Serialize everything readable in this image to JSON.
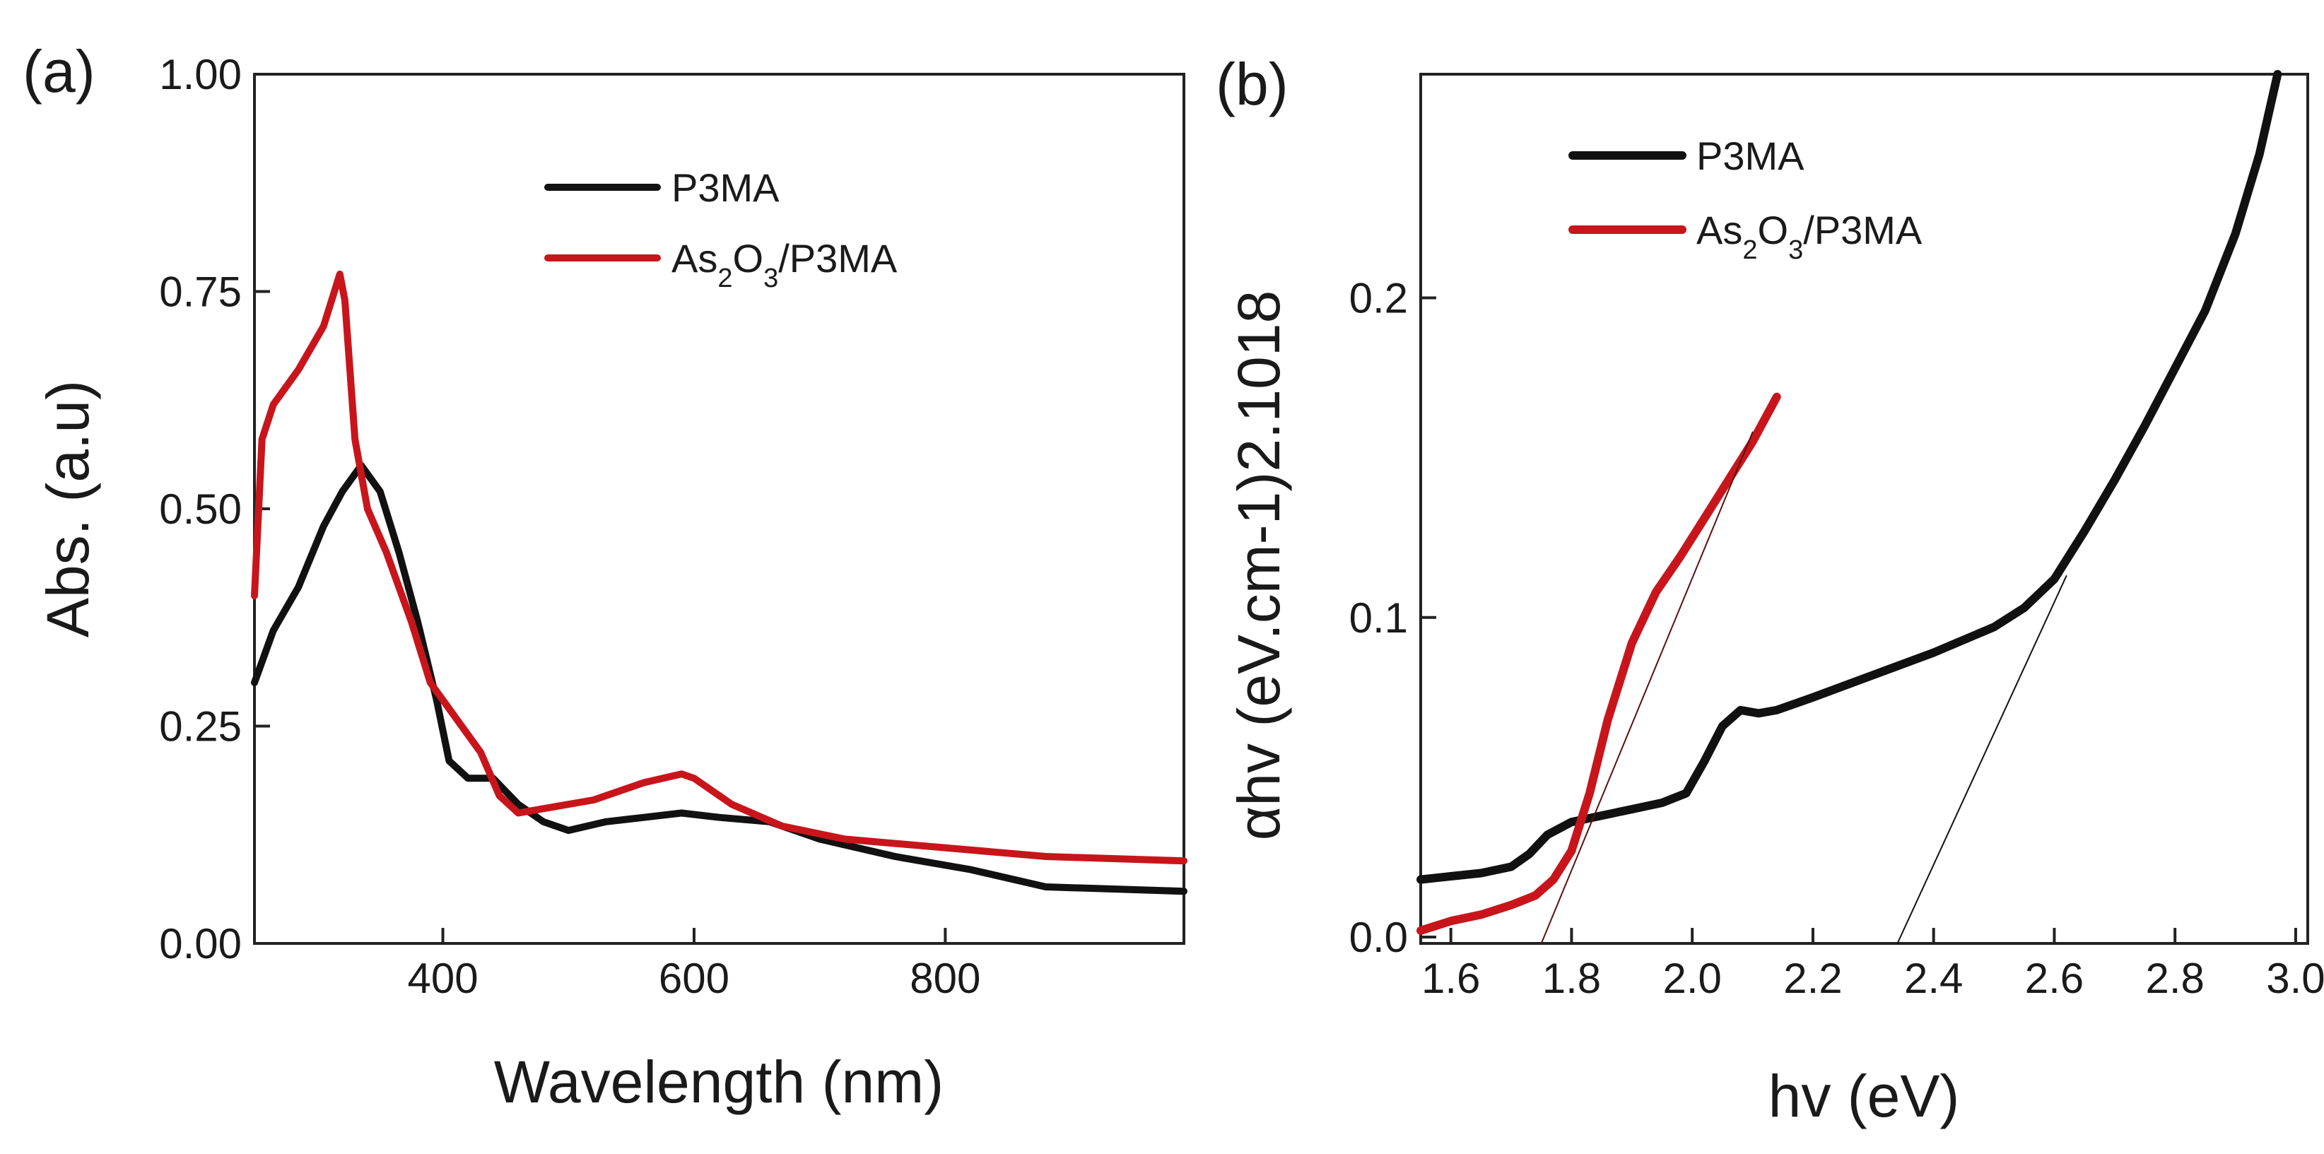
{
  "chart_data": [
    {
      "type": "line",
      "panel_label": "(a)",
      "xlabel": "Wavelength (nm)",
      "ylabel": "Abs. (a.u)",
      "xlim": [
        250,
        990
      ],
      "ylim": [
        0,
        1.0
      ],
      "xticks": [
        400,
        600,
        800
      ],
      "xtick_labels": [
        "400",
        "600",
        "800"
      ],
      "yticks": [
        0,
        0.25,
        0.5,
        0.75,
        1.0
      ],
      "ytick_labels": [
        "0.00",
        "0.25",
        "0.50",
        "0.75",
        "1.00"
      ],
      "legend_position": "top-right",
      "series": [
        {
          "name": "P3MA",
          "color": "#111111",
          "x": [
            250,
            265,
            285,
            305,
            320,
            335,
            350,
            365,
            380,
            395,
            405,
            420,
            440,
            460,
            480,
            500,
            530,
            560,
            590,
            620,
            660,
            700,
            760,
            820,
            880,
            990
          ],
          "y": [
            0.3,
            0.36,
            0.41,
            0.48,
            0.52,
            0.55,
            0.52,
            0.45,
            0.37,
            0.28,
            0.21,
            0.19,
            0.19,
            0.16,
            0.14,
            0.13,
            0.14,
            0.145,
            0.15,
            0.145,
            0.14,
            0.12,
            0.1,
            0.085,
            0.065,
            0.06
          ]
        },
        {
          "name": "As2O3/P3MA",
          "color": "#c8151b",
          "x": [
            250,
            256,
            265,
            285,
            305,
            318,
            322,
            330,
            340,
            355,
            375,
            390,
            410,
            430,
            445,
            460,
            480,
            520,
            560,
            590,
            600,
            630,
            670,
            720,
            800,
            880,
            990
          ],
          "y": [
            0.4,
            0.58,
            0.62,
            0.66,
            0.71,
            0.77,
            0.74,
            0.58,
            0.5,
            0.45,
            0.37,
            0.3,
            0.26,
            0.22,
            0.17,
            0.15,
            0.155,
            0.165,
            0.185,
            0.195,
            0.19,
            0.16,
            0.135,
            0.12,
            0.11,
            0.1,
            0.095
          ]
        }
      ]
    },
    {
      "type": "line",
      "panel_label": "(b)",
      "xlabel": "hv (eV)",
      "ylabel": "αhv (eV.cm-1)2.1018",
      "xlim": [
        1.55,
        3.02
      ],
      "ylim": [
        -0.002,
        0.27
      ],
      "xticks": [
        1.6,
        1.8,
        2.0,
        2.2,
        2.4,
        2.6,
        2.8,
        3.0
      ],
      "xtick_labels": [
        "1.6",
        "1.8",
        "2.0",
        "2.2",
        "2.4",
        "2.6",
        "2.8",
        "3.0"
      ],
      "yticks": [
        0.0,
        0.1,
        0.2
      ],
      "ytick_labels": [
        "0.0",
        "0.1",
        "0.2"
      ],
      "legend_position": "top-left",
      "series": [
        {
          "name": "P3MA",
          "color": "#111111",
          "x": [
            1.55,
            1.6,
            1.65,
            1.7,
            1.73,
            1.76,
            1.8,
            1.85,
            1.9,
            1.95,
            1.99,
            2.02,
            2.05,
            2.08,
            2.11,
            2.14,
            2.2,
            2.3,
            2.4,
            2.5,
            2.55,
            2.6,
            2.65,
            2.7,
            2.75,
            2.8,
            2.85,
            2.9,
            2.94,
            2.97
          ],
          "y": [
            0.018,
            0.019,
            0.02,
            0.022,
            0.026,
            0.032,
            0.036,
            0.038,
            0.04,
            0.042,
            0.045,
            0.055,
            0.066,
            0.071,
            0.07,
            0.071,
            0.075,
            0.082,
            0.089,
            0.097,
            0.103,
            0.112,
            0.127,
            0.143,
            0.16,
            0.178,
            0.196,
            0.22,
            0.245,
            0.27
          ]
        },
        {
          "name": "As2O3/P3MA",
          "color": "#c8151b",
          "x": [
            1.55,
            1.6,
            1.65,
            1.7,
            1.74,
            1.77,
            1.8,
            1.83,
            1.86,
            1.9,
            1.94,
            1.98,
            2.02,
            2.06,
            2.1,
            2.14
          ],
          "y": [
            0.002,
            0.005,
            0.007,
            0.01,
            0.013,
            0.018,
            0.027,
            0.045,
            0.068,
            0.092,
            0.108,
            0.119,
            0.131,
            0.143,
            0.155,
            0.169
          ]
        },
        {
          "name": "fit-line-1",
          "color": "#5a1010",
          "line_width": 2,
          "x": [
            1.75,
            2.1
          ],
          "y": [
            -0.002,
            0.158
          ]
        },
        {
          "name": "fit-line-2",
          "color": "#111111",
          "line_width": 2,
          "x": [
            2.34,
            2.62
          ],
          "y": [
            -0.002,
            0.113
          ]
        }
      ]
    }
  ]
}
